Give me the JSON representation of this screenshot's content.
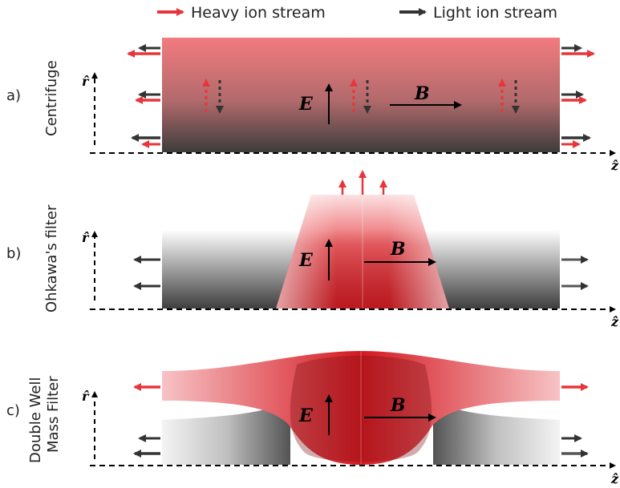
{
  "legend": {
    "heavy": "Heavy ion stream",
    "light": "Light ion stream"
  },
  "panels": [
    {
      "letter": "a)",
      "title": "Centrifuge",
      "title_line2": ""
    },
    {
      "letter": "b)",
      "title": "Ohkawa's filter",
      "title_line2": ""
    },
    {
      "letter": "c)",
      "title": "Double Well",
      "title_line2": "Mass Filter"
    }
  ],
  "symbols": {
    "radial": "r̂",
    "axial": "ẑ",
    "electric_field": "E",
    "magnetic_field": "B"
  },
  "colors": {
    "heavy": "#e8353a",
    "light": "#333333",
    "axis": "#000000"
  }
}
